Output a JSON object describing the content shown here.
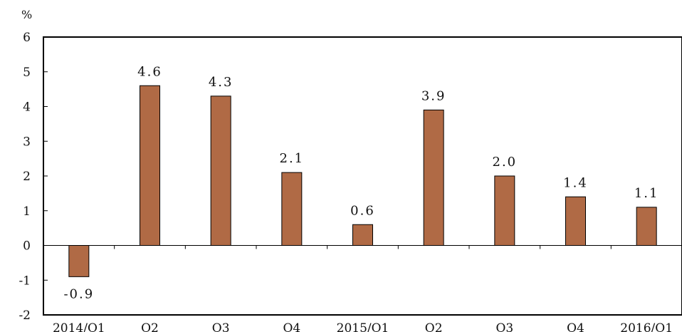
{
  "chart_data": {
    "type": "bar",
    "title": "",
    "xlabel": "",
    "ylabel": "%",
    "categories": [
      "2014/Q1",
      "Q2",
      "Q3",
      "Q4",
      "2015/Q1",
      "Q2",
      "Q3",
      "Q4",
      "2016/Q1"
    ],
    "values": [
      -0.9,
      4.6,
      4.3,
      2.1,
      0.6,
      3.9,
      2.0,
      1.4,
      1.1
    ],
    "data_labels": [
      "-0.9",
      "4.6",
      "4.3",
      "2.1",
      "0.6",
      "3.9",
      "2.0",
      "1.4",
      "1.1"
    ],
    "ylim": [
      -2,
      6
    ],
    "yticks": [
      -2,
      -1,
      0,
      1,
      2,
      3,
      4,
      5,
      6
    ],
    "ytick_labels": [
      "-2",
      "-1",
      "0",
      "1",
      "2",
      "3",
      "4",
      "5",
      "6"
    ],
    "grid": false,
    "legend": "none",
    "bar_color": "#b06a45",
    "bar_edge_color": "#000000"
  }
}
